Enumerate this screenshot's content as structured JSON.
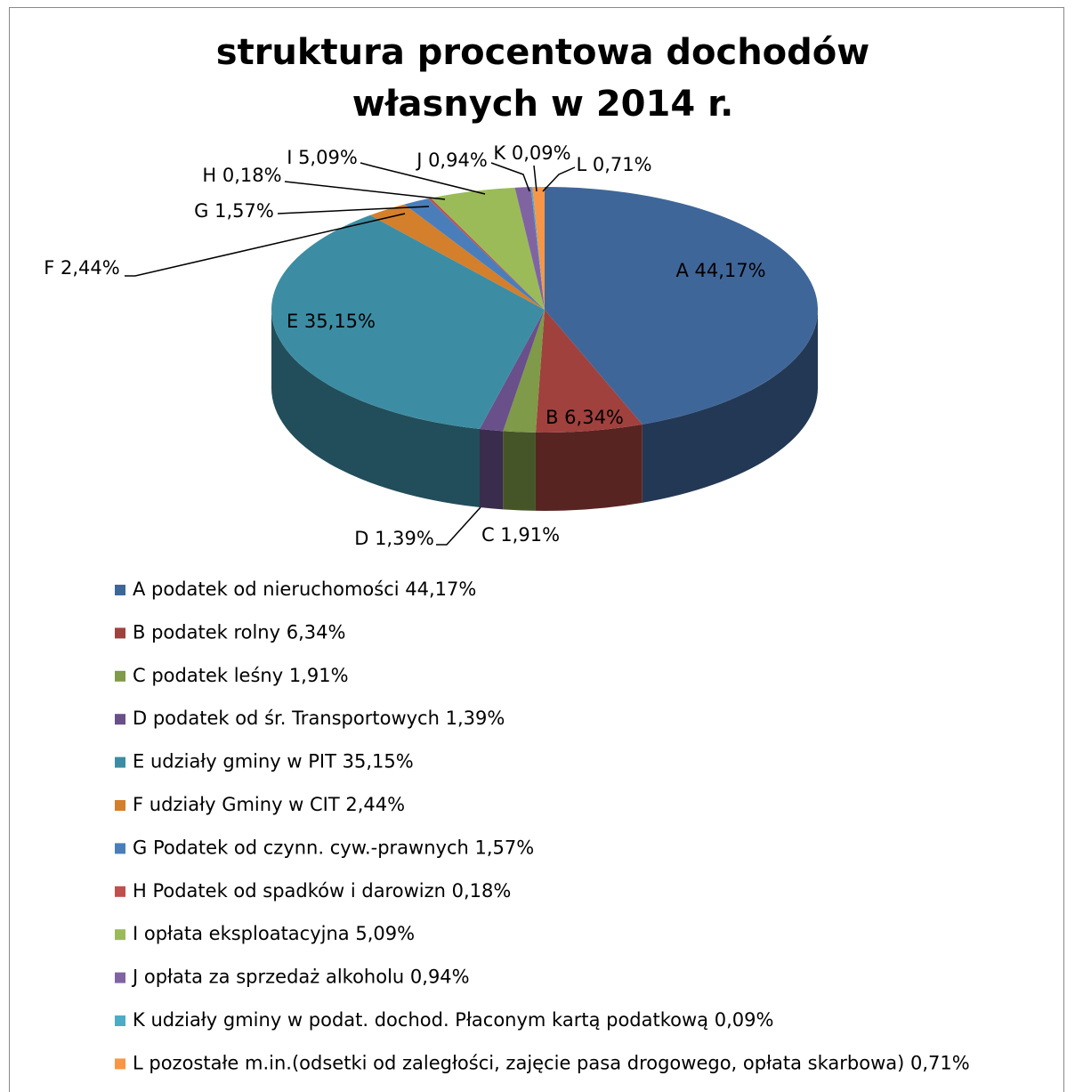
{
  "chart_data": {
    "type": "pie3d",
    "title": "struktura procentowa dochodów  własnych w 2014 r.",
    "categories": [
      "A podatek od nieruchomości 44,17%",
      "B podatek rolny 6,34%",
      "C podatek leśny 1,91%",
      "D podatek od śr. Transportowych 1,39%",
      "E udziały gminy w PIT 35,15%",
      "F udziały Gminy w CIT 2,44%",
      "G Podatek od czynn. cyw.-prawnych 1,57%",
      "H Podatek od spadków i darowizn 0,18%",
      "I opłata eksploatacyjna 5,09%",
      "J opłata za sprzedaż alkoholu 0,94%",
      "K udziały gminy w podat. dochod. Płaconym kartą podatkową 0,09%",
      "L pozostałe m.in.(odsetki od zaległości, zajęcie pasa drogowego, opłata skarbowa) 0,71%"
    ],
    "values": [
      44.17,
      6.34,
      1.91,
      1.39,
      35.15,
      2.44,
      1.57,
      0.18,
      5.09,
      0.94,
      0.09,
      0.71
    ],
    "value_labels": [
      "A 44,17%",
      "B 6,34%",
      "C 1,91%",
      "D 1,39%",
      "E 35,15%",
      "F 2,44%",
      "G 1,57%",
      "H 0,18%",
      "I 5,09%",
      "J 0,94%",
      "K 0,09%",
      "L 0,71%"
    ],
    "colors": [
      "#3f6699",
      "#a0413e",
      "#7f9a48",
      "#69508a",
      "#3c8da3",
      "#d37f2c",
      "#4a7ebb",
      "#c0504d",
      "#9bbb59",
      "#8064a2",
      "#4bacc6",
      "#f79646"
    ],
    "legend": "bottom"
  }
}
